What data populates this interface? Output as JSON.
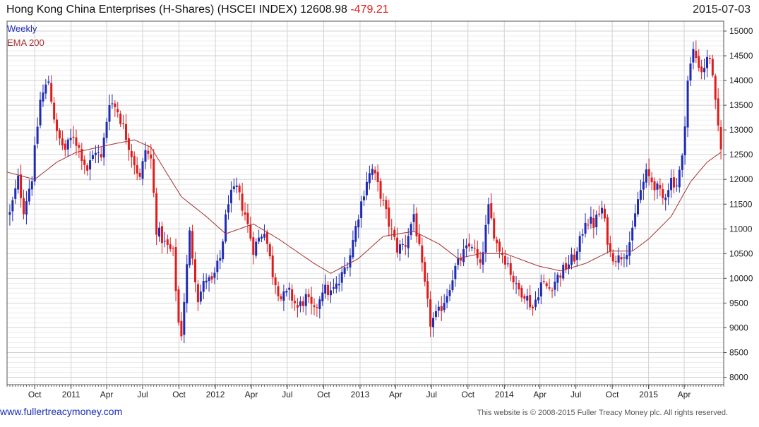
{
  "header": {
    "title": "Hong Kong China Enterprises (H-Shares) (HSCEI INDEX) 12608.98",
    "change": "-479.21",
    "date": "2015-07-03"
  },
  "footer": {
    "left": "www.fullertreacymoney.com",
    "right": "This website is © 2008-2015 Fuller Treacy Money plc. All rights reserved."
  },
  "colors": {
    "up": "#1f2bb5",
    "down": "#e01b1b",
    "ema": "#a83030",
    "grid": "#d2d2d2"
  },
  "chart_data": {
    "type": "candlestick",
    "legend": [
      {
        "label": "Weekly",
        "color": "#1f2bb5"
      },
      {
        "label": "EMA 200",
        "color": "#a83030"
      }
    ],
    "legend_position": "top-left",
    "grid": true,
    "ylim": [
      7850,
      15200
    ],
    "y_ticks": [
      8000,
      8500,
      9000,
      9500,
      10000,
      10500,
      11000,
      11500,
      12000,
      12500,
      13000,
      13500,
      14000,
      14500,
      15000
    ],
    "x_range": [
      "2010-07-23",
      "2015-07-10"
    ],
    "x_ticks": [
      {
        "date": "2010-10-01",
        "label": "Oct"
      },
      {
        "date": "2011-01-01",
        "label": "2011"
      },
      {
        "date": "2011-04-01",
        "label": "Apr"
      },
      {
        "date": "2011-07-01",
        "label": "Jul"
      },
      {
        "date": "2011-10-01",
        "label": "Oct"
      },
      {
        "date": "2012-01-01",
        "label": "2012"
      },
      {
        "date": "2012-04-01",
        "label": "Apr"
      },
      {
        "date": "2012-07-01",
        "label": "Jul"
      },
      {
        "date": "2012-10-01",
        "label": "Oct"
      },
      {
        "date": "2013-01-01",
        "label": "2013"
      },
      {
        "date": "2013-04-01",
        "label": "Apr"
      },
      {
        "date": "2013-07-01",
        "label": "Jul"
      },
      {
        "date": "2013-10-01",
        "label": "Oct"
      },
      {
        "date": "2014-01-01",
        "label": "2014"
      },
      {
        "date": "2014-04-01",
        "label": "Apr"
      },
      {
        "date": "2014-07-01",
        "label": "Jul"
      },
      {
        "date": "2014-10-01",
        "label": "Oct"
      },
      {
        "date": "2015-01-01",
        "label": "2015"
      },
      {
        "date": "2015-04-01",
        "label": "Apr"
      }
    ],
    "close_anchors": [
      [
        "2010-07-30",
        11300
      ],
      [
        "2010-08-20",
        12000
      ],
      [
        "2010-09-03",
        11400
      ],
      [
        "2010-09-24",
        12050
      ],
      [
        "2010-10-15",
        13600
      ],
      [
        "2010-11-05",
        14000
      ],
      [
        "2010-11-26",
        12900
      ],
      [
        "2010-12-17",
        12600
      ],
      [
        "2011-01-07",
        12900
      ],
      [
        "2011-02-11",
        12200
      ],
      [
        "2011-03-04",
        12600
      ],
      [
        "2011-03-18",
        12400
      ],
      [
        "2011-04-08",
        13600
      ],
      [
        "2011-04-29",
        13400
      ],
      [
        "2011-05-27",
        12700
      ],
      [
        "2011-06-24",
        12000
      ],
      [
        "2011-07-08",
        12600
      ],
      [
        "2011-07-22",
        12400
      ],
      [
        "2011-08-05",
        11000
      ],
      [
        "2011-08-26",
        10700
      ],
      [
        "2011-09-16",
        10500
      ],
      [
        "2011-09-30",
        9100
      ],
      [
        "2011-10-07",
        8900
      ],
      [
        "2011-10-28",
        10900
      ],
      [
        "2011-11-18",
        9600
      ],
      [
        "2011-12-09",
        10000
      ],
      [
        "2011-12-23",
        9900
      ],
      [
        "2012-01-13",
        10400
      ],
      [
        "2012-02-03",
        11600
      ],
      [
        "2012-02-24",
        11800
      ],
      [
        "2012-03-16",
        11300
      ],
      [
        "2012-04-06",
        10600
      ],
      [
        "2012-05-04",
        11000
      ],
      [
        "2012-05-25",
        10100
      ],
      [
        "2012-06-15",
        9600
      ],
      [
        "2012-07-06",
        9700
      ],
      [
        "2012-07-27",
        9400
      ],
      [
        "2012-08-17",
        9600
      ],
      [
        "2012-09-07",
        9300
      ],
      [
        "2012-09-28",
        9800
      ],
      [
        "2012-10-19",
        9700
      ],
      [
        "2012-11-09",
        9900
      ],
      [
        "2012-12-07",
        10500
      ],
      [
        "2012-12-28",
        11300
      ],
      [
        "2013-01-18",
        12000
      ],
      [
        "2013-02-01",
        12200
      ],
      [
        "2013-02-22",
        11700
      ],
      [
        "2013-03-15",
        11100
      ],
      [
        "2013-04-05",
        10600
      ],
      [
        "2013-04-26",
        10700
      ],
      [
        "2013-05-17",
        11300
      ],
      [
        "2013-06-07",
        10200
      ],
      [
        "2013-06-28",
        9100
      ],
      [
        "2013-07-19",
        9300
      ],
      [
        "2013-08-09",
        9700
      ],
      [
        "2013-08-30",
        10200
      ],
      [
        "2013-09-20",
        10500
      ],
      [
        "2013-10-11",
        10700
      ],
      [
        "2013-11-01",
        10200
      ],
      [
        "2013-11-22",
        11400
      ],
      [
        "2013-12-13",
        10700
      ],
      [
        "2014-01-10",
        10300
      ],
      [
        "2014-01-31",
        9800
      ],
      [
        "2014-02-21",
        9700
      ],
      [
        "2014-03-14",
        9400
      ],
      [
        "2014-04-04",
        9900
      ],
      [
        "2014-04-25",
        9800
      ],
      [
        "2014-05-23",
        10100
      ],
      [
        "2014-06-13",
        10300
      ],
      [
        "2014-07-04",
        10500
      ],
      [
        "2014-07-25",
        11200
      ],
      [
        "2014-08-15",
        11100
      ],
      [
        "2014-09-05",
        11400
      ],
      [
        "2014-09-26",
        10500
      ],
      [
        "2014-10-17",
        10400
      ],
      [
        "2014-11-07",
        10600
      ],
      [
        "2014-11-21",
        10900
      ],
      [
        "2014-12-05",
        11600
      ],
      [
        "2014-12-26",
        12100
      ],
      [
        "2015-01-16",
        11900
      ],
      [
        "2015-02-06",
        11600
      ],
      [
        "2015-02-27",
        12000
      ],
      [
        "2015-03-13",
        11900
      ],
      [
        "2015-03-27",
        12400
      ],
      [
        "2015-04-10",
        14000
      ],
      [
        "2015-04-24",
        14600
      ],
      [
        "2015-05-15",
        14200
      ],
      [
        "2015-06-05",
        14500
      ],
      [
        "2015-06-19",
        13500
      ],
      [
        "2015-07-03",
        12609
      ]
    ],
    "ema_200": [
      [
        "2010-07-23",
        12150
      ],
      [
        "2010-10-01",
        12000
      ],
      [
        "2010-11-26",
        12350
      ],
      [
        "2011-01-14",
        12550
      ],
      [
        "2011-04-08",
        12700
      ],
      [
        "2011-06-10",
        12800
      ],
      [
        "2011-07-22",
        12650
      ],
      [
        "2011-09-02",
        12100
      ],
      [
        "2011-10-07",
        11650
      ],
      [
        "2011-12-09",
        11250
      ],
      [
        "2012-01-27",
        10900
      ],
      [
        "2012-04-06",
        11100
      ],
      [
        "2012-06-08",
        10800
      ],
      [
        "2012-09-07",
        10300
      ],
      [
        "2012-10-19",
        10100
      ],
      [
        "2012-12-28",
        10400
      ],
      [
        "2013-03-01",
        10850
      ],
      [
        "2013-05-17",
        10950
      ],
      [
        "2013-07-19",
        10700
      ],
      [
        "2013-09-06",
        10400
      ],
      [
        "2013-11-01",
        10500
      ],
      [
        "2014-01-03",
        10500
      ],
      [
        "2014-03-28",
        10250
      ],
      [
        "2014-05-23",
        10150
      ],
      [
        "2014-07-25",
        10300
      ],
      [
        "2014-09-26",
        10550
      ],
      [
        "2014-11-21",
        10550
      ],
      [
        "2015-01-02",
        10800
      ],
      [
        "2015-02-27",
        11250
      ],
      [
        "2015-04-17",
        11950
      ],
      [
        "2015-05-29",
        12350
      ],
      [
        "2015-07-03",
        12550
      ]
    ]
  }
}
